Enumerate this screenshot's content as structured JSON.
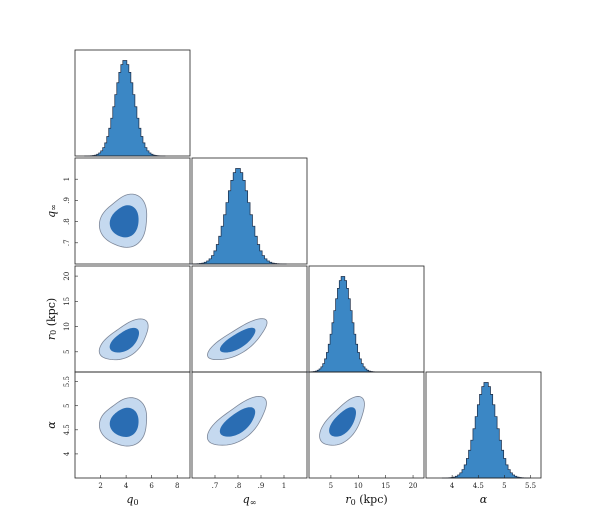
{
  "chart_data": {
    "type": "corner",
    "parameters": [
      {
        "key": "q0",
        "label": "q",
        "sub": "0",
        "unit": "",
        "italic": true,
        "range": [
          0,
          9
        ],
        "ticks": [
          2,
          4,
          6,
          8
        ],
        "tick_labels": [
          "2",
          "4",
          "6",
          "8"
        ],
        "mean": 3.9,
        "sd": 0.75
      },
      {
        "key": "qinf",
        "label": "q",
        "sub": "∞",
        "unit": "",
        "italic": true,
        "range": [
          0.6,
          1.1
        ],
        "ticks": [
          0.7,
          0.8,
          0.9,
          1.0
        ],
        "tick_labels": [
          ".7",
          ".8",
          ".9",
          "1"
        ],
        "mean": 0.8,
        "sd": 0.05
      },
      {
        "key": "r0",
        "label": "r",
        "sub": "0",
        "unit": " (kpc)",
        "italic": true,
        "range": [
          1,
          22
        ],
        "ticks": [
          5,
          10,
          15,
          20
        ],
        "tick_labels": [
          "5",
          "10",
          "15",
          "20"
        ],
        "mean": 7.2,
        "sd": 1.6
      },
      {
        "key": "alpha",
        "label": "α",
        "sub": "",
        "unit": "",
        "italic": true,
        "range": [
          3.5,
          5.7
        ],
        "ticks": [
          4.0,
          4.5,
          5.0,
          5.5
        ],
        "tick_labels": [
          "4",
          "4.5",
          "5",
          "5.5"
        ],
        "mean": 4.65,
        "sd": 0.2
      }
    ],
    "correlations": {
      "1-0": 0.05,
      "2-0": 0.5,
      "2-1": 0.72,
      "3-0": 0.02,
      "3-1": 0.6,
      "3-2": 0.55
    },
    "histogram_bins": 40,
    "contour_levels": [
      "68%",
      "95%"
    ],
    "colors": {
      "hist_fill": "#3b87c5",
      "hist_edge": "#1b2b45",
      "inner": "#2a6db3",
      "outer": "#c5d9ef",
      "contour_edge": "#7d8799"
    }
  }
}
